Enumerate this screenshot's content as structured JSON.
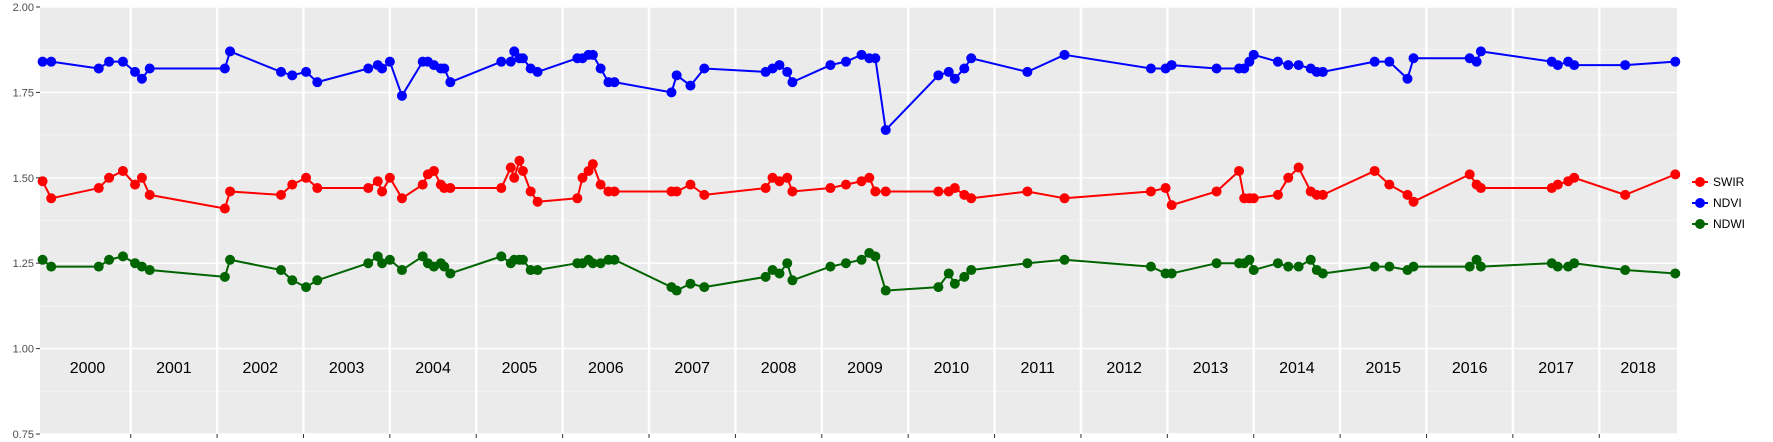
{
  "chart_data": {
    "type": "line",
    "ylim": [
      0.75,
      2.0
    ],
    "y_ticks": [
      "0.75",
      "1.00",
      "1.25",
      "1.50",
      "1.75",
      "2.00"
    ],
    "y_tick_values": [
      0.75,
      1.0,
      1.25,
      1.5,
      1.75,
      2.0
    ],
    "xlim": [
      1999.95,
      2018.9
    ],
    "years": [
      "2000",
      "2001",
      "2002",
      "2003",
      "2004",
      "2005",
      "2006",
      "2007",
      "2008",
      "2009",
      "2010",
      "2011",
      "2012",
      "2013",
      "2014",
      "2015",
      "2016",
      "2017",
      "2018"
    ],
    "grid": true,
    "legend_position": "right",
    "series": [
      {
        "name": "SWIR",
        "color": "#ff0000",
        "x": [
          1999.98,
          2000.08,
          2000.63,
          2000.75,
          2000.91,
          2001.05,
          2001.13,
          2001.22,
          2002.09,
          2002.15,
          2002.74,
          2002.87,
          2003.03,
          2003.16,
          2003.75,
          2003.86,
          2003.91,
          2004.0,
          2004.14,
          2004.38,
          2004.44,
          2004.51,
          2004.59,
          2004.63,
          2004.7,
          2005.29,
          2005.4,
          2005.44,
          2005.5,
          2005.54,
          2005.63,
          2005.71,
          2006.17,
          2006.23,
          2006.3,
          2006.35,
          2006.44,
          2006.53,
          2006.6,
          2007.26,
          2007.32,
          2007.48,
          2007.64,
          2008.35,
          2008.43,
          2008.51,
          2008.6,
          2008.66,
          2009.1,
          2009.28,
          2009.46,
          2009.55,
          2009.62,
          2009.74,
          2010.35,
          2010.47,
          2010.54,
          2010.65,
          2010.73,
          2011.38,
          2011.81,
          2012.81,
          2012.98,
          2013.05,
          2013.57,
          2013.83,
          2013.89,
          2013.95,
          2014.0,
          2014.28,
          2014.4,
          2014.52,
          2014.66,
          2014.73,
          2014.8,
          2015.4,
          2015.57,
          2015.78,
          2015.85,
          2016.5,
          2016.58,
          2016.63,
          2017.45,
          2017.52,
          2017.64,
          2017.71,
          2018.3,
          2018.88
        ],
        "y": [
          1.49,
          1.44,
          1.47,
          1.5,
          1.52,
          1.48,
          1.5,
          1.45,
          1.41,
          1.46,
          1.45,
          1.48,
          1.5,
          1.47,
          1.47,
          1.49,
          1.46,
          1.5,
          1.44,
          1.48,
          1.51,
          1.52,
          1.48,
          1.47,
          1.47,
          1.47,
          1.53,
          1.5,
          1.55,
          1.52,
          1.46,
          1.43,
          1.44,
          1.5,
          1.52,
          1.54,
          1.48,
          1.46,
          1.46,
          1.46,
          1.46,
          1.48,
          1.45,
          1.47,
          1.5,
          1.49,
          1.5,
          1.46,
          1.47,
          1.48,
          1.49,
          1.5,
          1.46,
          1.46,
          1.46,
          1.46,
          1.47,
          1.45,
          1.44,
          1.46,
          1.44,
          1.46,
          1.47,
          1.42,
          1.46,
          1.52,
          1.44,
          1.44,
          1.44,
          1.45,
          1.5,
          1.53,
          1.46,
          1.45,
          1.45,
          1.52,
          1.48,
          1.45,
          1.43,
          1.51,
          1.48,
          1.47,
          1.47,
          1.48,
          1.49,
          1.5,
          1.45,
          1.51
        ]
      },
      {
        "name": "NDVI",
        "color": "#0000ff",
        "x": [
          1999.98,
          2000.08,
          2000.63,
          2000.75,
          2000.91,
          2001.05,
          2001.13,
          2001.22,
          2002.09,
          2002.15,
          2002.74,
          2002.87,
          2003.03,
          2003.16,
          2003.75,
          2003.86,
          2003.91,
          2004.0,
          2004.14,
          2004.38,
          2004.44,
          2004.51,
          2004.59,
          2004.63,
          2004.7,
          2005.29,
          2005.4,
          2005.44,
          2005.5,
          2005.54,
          2005.63,
          2005.71,
          2006.17,
          2006.23,
          2006.3,
          2006.35,
          2006.44,
          2006.53,
          2006.6,
          2007.26,
          2007.32,
          2007.48,
          2007.64,
          2008.35,
          2008.43,
          2008.51,
          2008.6,
          2008.66,
          2009.1,
          2009.28,
          2009.46,
          2009.55,
          2009.62,
          2009.74,
          2010.35,
          2010.47,
          2010.54,
          2010.65,
          2010.73,
          2011.38,
          2011.81,
          2012.81,
          2012.98,
          2013.05,
          2013.57,
          2013.83,
          2013.89,
          2013.95,
          2014.0,
          2014.28,
          2014.4,
          2014.52,
          2014.66,
          2014.73,
          2014.8,
          2015.4,
          2015.57,
          2015.78,
          2015.85,
          2016.5,
          2016.58,
          2016.63,
          2017.45,
          2017.52,
          2017.64,
          2017.71,
          2018.3,
          2018.88
        ],
        "y": [
          1.84,
          1.84,
          1.82,
          1.84,
          1.84,
          1.81,
          1.79,
          1.82,
          1.82,
          1.87,
          1.81,
          1.8,
          1.81,
          1.78,
          1.82,
          1.83,
          1.82,
          1.84,
          1.74,
          1.84,
          1.84,
          1.83,
          1.82,
          1.82,
          1.78,
          1.84,
          1.84,
          1.87,
          1.85,
          1.85,
          1.82,
          1.81,
          1.85,
          1.85,
          1.86,
          1.86,
          1.82,
          1.78,
          1.78,
          1.75,
          1.8,
          1.77,
          1.82,
          1.81,
          1.82,
          1.83,
          1.81,
          1.78,
          1.83,
          1.84,
          1.86,
          1.85,
          1.85,
          1.64,
          1.8,
          1.81,
          1.79,
          1.82,
          1.85,
          1.81,
          1.86,
          1.82,
          1.82,
          1.83,
          1.82,
          1.82,
          1.82,
          1.84,
          1.86,
          1.84,
          1.83,
          1.83,
          1.82,
          1.81,
          1.81,
          1.84,
          1.84,
          1.79,
          1.85,
          1.85,
          1.84,
          1.87,
          1.84,
          1.83,
          1.84,
          1.83,
          1.83,
          1.84
        ]
      },
      {
        "name": "NDWI",
        "color": "#006400",
        "x": [
          1999.98,
          2000.08,
          2000.63,
          2000.75,
          2000.91,
          2001.05,
          2001.13,
          2001.22,
          2002.09,
          2002.15,
          2002.74,
          2002.87,
          2003.03,
          2003.16,
          2003.75,
          2003.86,
          2003.91,
          2004.0,
          2004.14,
          2004.38,
          2004.44,
          2004.51,
          2004.59,
          2004.63,
          2004.7,
          2005.29,
          2005.4,
          2005.44,
          2005.5,
          2005.54,
          2005.63,
          2005.71,
          2006.17,
          2006.23,
          2006.3,
          2006.35,
          2006.44,
          2006.53,
          2006.6,
          2007.26,
          2007.32,
          2007.48,
          2007.64,
          2008.35,
          2008.43,
          2008.51,
          2008.6,
          2008.66,
          2009.1,
          2009.28,
          2009.46,
          2009.55,
          2009.62,
          2009.74,
          2010.35,
          2010.47,
          2010.54,
          2010.65,
          2010.73,
          2011.38,
          2011.81,
          2012.81,
          2012.98,
          2013.05,
          2013.57,
          2013.83,
          2013.89,
          2013.95,
          2014.0,
          2014.28,
          2014.4,
          2014.52,
          2014.66,
          2014.73,
          2014.8,
          2015.4,
          2015.57,
          2015.78,
          2015.85,
          2016.5,
          2016.58,
          2016.63,
          2017.45,
          2017.52,
          2017.64,
          2017.71,
          2018.3,
          2018.88
        ],
        "y": [
          1.26,
          1.24,
          1.24,
          1.26,
          1.27,
          1.25,
          1.24,
          1.23,
          1.21,
          1.26,
          1.23,
          1.2,
          1.18,
          1.2,
          1.25,
          1.27,
          1.25,
          1.26,
          1.23,
          1.27,
          1.25,
          1.24,
          1.25,
          1.24,
          1.22,
          1.27,
          1.25,
          1.26,
          1.26,
          1.26,
          1.23,
          1.23,
          1.25,
          1.25,
          1.26,
          1.25,
          1.25,
          1.26,
          1.26,
          1.18,
          1.17,
          1.19,
          1.18,
          1.21,
          1.23,
          1.22,
          1.25,
          1.2,
          1.24,
          1.25,
          1.26,
          1.28,
          1.27,
          1.17,
          1.18,
          1.22,
          1.19,
          1.21,
          1.23,
          1.25,
          1.26,
          1.24,
          1.22,
          1.22,
          1.25,
          1.25,
          1.25,
          1.26,
          1.23,
          1.25,
          1.24,
          1.24,
          1.26,
          1.23,
          1.22,
          1.24,
          1.24,
          1.23,
          1.24,
          1.24,
          1.26,
          1.24,
          1.25,
          1.24,
          1.24,
          1.25,
          1.23,
          1.22
        ]
      }
    ]
  }
}
